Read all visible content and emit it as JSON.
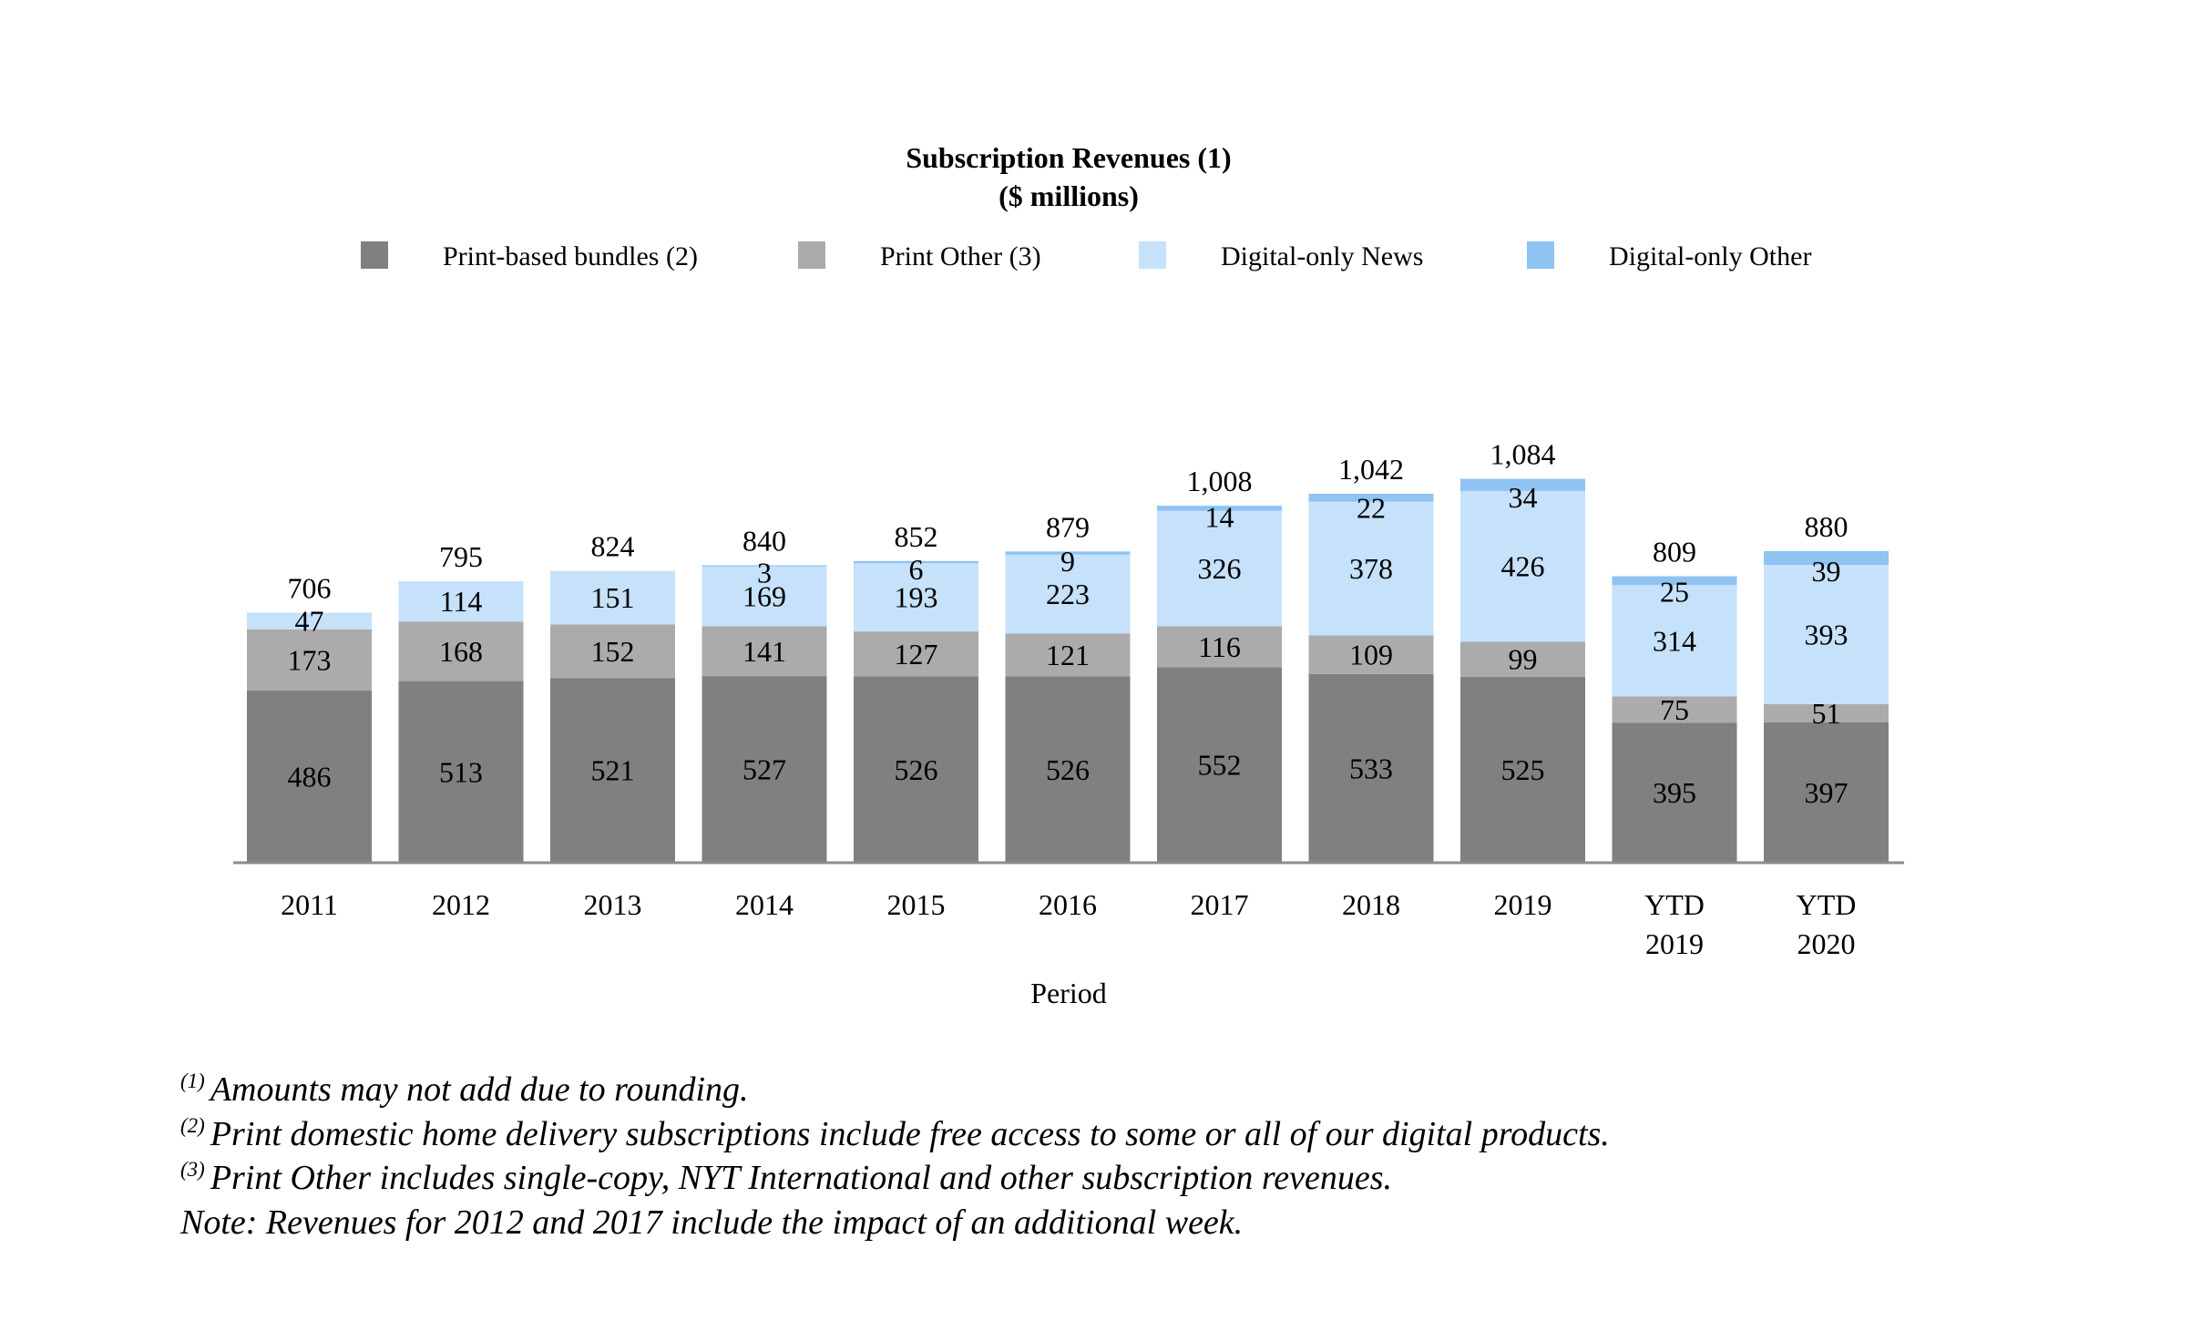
{
  "chart_data": {
    "type": "bar",
    "stacked": true,
    "title": "Subscription Revenues (1)",
    "subtitle": "($ millions)",
    "xlabel": "Period",
    "ylabel": "",
    "grid": false,
    "legend_position": "top",
    "categories": [
      [
        "2011"
      ],
      [
        "2012"
      ],
      [
        "2013"
      ],
      [
        "2014"
      ],
      [
        "2015"
      ],
      [
        "2016"
      ],
      [
        "2017"
      ],
      [
        "2018"
      ],
      [
        "2019"
      ],
      [
        "YTD",
        "2019"
      ],
      [
        "YTD",
        "2020"
      ]
    ],
    "series": [
      {
        "name": "Print-based bundles (2)",
        "color": "#808080",
        "values": [
          486,
          513,
          521,
          527,
          526,
          526,
          552,
          533,
          525,
          395,
          397
        ]
      },
      {
        "name": "Print Other (3)",
        "color": "#ababab",
        "values": [
          173,
          168,
          152,
          141,
          127,
          121,
          116,
          109,
          99,
          75,
          51
        ]
      },
      {
        "name": "Digital-only News",
        "color": "#c6e1fa",
        "values": [
          47,
          114,
          151,
          169,
          193,
          223,
          326,
          378,
          426,
          314,
          393
        ]
      },
      {
        "name": "Digital-only Other",
        "color": "#8ec3f2",
        "values": [
          null,
          null,
          null,
          3,
          6,
          9,
          14,
          22,
          34,
          25,
          39
        ]
      }
    ],
    "totals": [
      "706",
      "795",
      "824",
      "840",
      "852",
      "879",
      "1,008",
      "1,042",
      "1,084",
      "809",
      "880"
    ]
  },
  "footnotes": [
    {
      "mark": "(1)",
      "text": "Amounts may not add due to rounding."
    },
    {
      "mark": "(2)",
      "text": "Print domestic home delivery subscriptions include free access to some or all of our digital products."
    },
    {
      "mark": "(3)",
      "text": "Print Other includes single-copy, NYT International and other subscription revenues."
    },
    {
      "mark": "",
      "text": "Note: Revenues for 2012 and 2017 include the impact of an additional week."
    }
  ]
}
